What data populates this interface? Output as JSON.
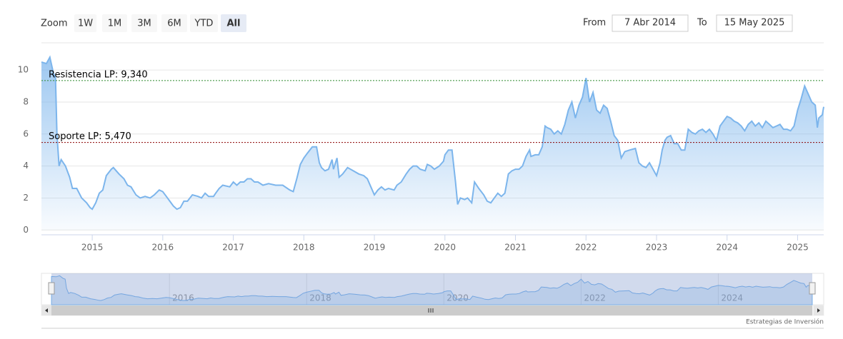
{
  "zoom_label": "Zoom",
  "zoom_buttons": [
    "1W",
    "1M",
    "3M",
    "6M",
    "YTD",
    "All"
  ],
  "selected_zoom_index": 5,
  "from_label": "From",
  "from_date": "7 Abr 2014",
  "to_label": "To",
  "to_date": "15 May 2025",
  "credits": "Estrategias de Inversión",
  "chart_data": {
    "type": "area",
    "color": "#7cb5ec",
    "x": [
      2014.28,
      2014.35,
      2014.4,
      2014.45,
      2014.48,
      2014.5,
      2014.53,
      2014.56,
      2014.62,
      2014.68,
      2014.72,
      2014.78,
      2014.85,
      2014.92,
      2014.97,
      2015.0,
      2015.05,
      2015.1,
      2015.15,
      2015.2,
      2015.27,
      2015.3,
      2015.38,
      2015.45,
      2015.5,
      2015.55,
      2015.62,
      2015.68,
      2015.75,
      2015.82,
      2015.88,
      2015.95,
      2016.0,
      2016.05,
      2016.1,
      2016.15,
      2016.2,
      2016.25,
      2016.3,
      2016.35,
      2016.42,
      2016.5,
      2016.55,
      2016.6,
      2016.65,
      2016.72,
      2016.75,
      2016.8,
      2016.85,
      2016.95,
      2017.0,
      2017.05,
      2017.1,
      2017.15,
      2017.2,
      2017.25,
      2017.3,
      2017.35,
      2017.42,
      2017.5,
      2017.6,
      2017.7,
      2017.8,
      2017.85,
      2017.9,
      2017.95,
      2018.0,
      2018.05,
      2018.12,
      2018.18,
      2018.22,
      2018.25,
      2018.3,
      2018.35,
      2018.4,
      2018.42,
      2018.47,
      2018.5,
      2018.55,
      2018.62,
      2018.7,
      2018.78,
      2018.85,
      2018.9,
      2018.95,
      2019.0,
      2019.05,
      2019.1,
      2019.15,
      2019.2,
      2019.28,
      2019.32,
      2019.38,
      2019.45,
      2019.5,
      2019.55,
      2019.6,
      2019.65,
      2019.72,
      2019.75,
      2019.8,
      2019.85,
      2019.92,
      2019.98,
      2020.0,
      2020.05,
      2020.1,
      2020.15,
      2020.18,
      2020.22,
      2020.28,
      2020.32,
      2020.38,
      2020.42,
      2020.48,
      2020.55,
      2020.6,
      2020.65,
      2020.7,
      2020.75,
      2020.8,
      2020.85,
      2020.9,
      2020.95,
      2021.0,
      2021.05,
      2021.1,
      2021.15,
      2021.2,
      2021.22,
      2021.28,
      2021.33,
      2021.38,
      2021.42,
      2021.45,
      2021.5,
      2021.55,
      2021.6,
      2021.65,
      2021.7,
      2021.75,
      2021.8,
      2021.85,
      2021.9,
      2021.95,
      2022.0,
      2022.05,
      2022.1,
      2022.15,
      2022.2,
      2022.25,
      2022.3,
      2022.35,
      2022.4,
      2022.45,
      2022.5,
      2022.55,
      2022.62,
      2022.7,
      2022.75,
      2022.8,
      2022.85,
      2022.9,
      2022.95,
      2023.0,
      2023.05,
      2023.08,
      2023.12,
      2023.15,
      2023.2,
      2023.25,
      2023.3,
      2023.35,
      2023.4,
      2023.42,
      2023.45,
      2023.5,
      2023.55,
      2023.6,
      2023.65,
      2023.7,
      2023.75,
      2023.8,
      2023.85,
      2023.9,
      2023.95,
      2024.0,
      2024.05,
      2024.1,
      2024.15,
      2024.2,
      2024.25,
      2024.3,
      2024.35,
      2024.4,
      2024.45,
      2024.5,
      2024.55,
      2024.6,
      2024.65,
      2024.7,
      2024.75,
      2024.8,
      2024.85,
      2024.9,
      2024.95,
      2025.0,
      2025.05,
      2025.1,
      2025.15,
      2025.2,
      2025.25,
      2025.28,
      2025.3,
      2025.35,
      2025.37
    ],
    "values": [
      10.5,
      10.4,
      10.8,
      9.8,
      9.5,
      6,
      4.0,
      4.4,
      4.0,
      3.3,
      2.6,
      2.6,
      2.0,
      1.7,
      1.4,
      1.3,
      1.7,
      2.3,
      2.5,
      3.4,
      3.8,
      3.9,
      3.5,
      3.2,
      2.8,
      2.7,
      2.2,
      2.0,
      2.1,
      2.0,
      2.2,
      2.5,
      2.4,
      2.1,
      1.8,
      1.5,
      1.3,
      1.4,
      1.8,
      1.8,
      2.2,
      2.1,
      2.0,
      2.3,
      2.1,
      2.1,
      2.3,
      2.6,
      2.8,
      2.7,
      3.0,
      2.8,
      3.0,
      3.0,
      3.2,
      3.2,
      3.0,
      3.0,
      2.8,
      2.9,
      2.8,
      2.8,
      2.5,
      2.4,
      3.2,
      4.1,
      4.5,
      4.8,
      5.2,
      5.2,
      4.2,
      3.9,
      3.7,
      3.8,
      4.4,
      3.8,
      4.5,
      3.3,
      3.5,
      3.9,
      3.7,
      3.5,
      3.4,
      3.2,
      2.7,
      2.2,
      2.5,
      2.7,
      2.5,
      2.6,
      2.5,
      2.8,
      3.0,
      3.5,
      3.8,
      4.0,
      4.0,
      3.8,
      3.7,
      4.1,
      4.0,
      3.8,
      4.0,
      4.3,
      4.7,
      5.0,
      5.0,
      3.0,
      1.6,
      2.0,
      1.9,
      2.0,
      1.7,
      3.0,
      2.6,
      2.2,
      1.8,
      1.7,
      2.0,
      2.3,
      2.1,
      2.3,
      3.5,
      3.7,
      3.8,
      3.8,
      4.0,
      4.6,
      5.0,
      4.6,
      4.7,
      4.7,
      5.2,
      6.5,
      6.4,
      6.3,
      6.0,
      6.2,
      6.0,
      6.6,
      7.5,
      8.0,
      7.0,
      7.8,
      8.3,
      9.5,
      8.0,
      8.6,
      7.5,
      7.3,
      7.8,
      7.6,
      6.8,
      5.9,
      5.6,
      4.5,
      4.9,
      5.0,
      5.1,
      4.2,
      4.0,
      3.9,
      4.2,
      3.8,
      3.4,
      4.2,
      5.0,
      5.6,
      5.8,
      5.9,
      5.4,
      5.4,
      5.0,
      5.0,
      5.5,
      6.3,
      6.1,
      6.0,
      6.2,
      6.3,
      6.1,
      6.3,
      6.0,
      5.6,
      6.5,
      6.8,
      7.1,
      7.0,
      6.8,
      6.7,
      6.5,
      6.2,
      6.6,
      6.8,
      6.5,
      6.7,
      6.4,
      6.8,
      6.6,
      6.4,
      6.5,
      6.6,
      6.3,
      6.3,
      6.2,
      6.5,
      7.5,
      8.2,
      9.0,
      8.5,
      8.0,
      7.8,
      6.4,
      7.0,
      7.2,
      7.7
    ],
    "xlim": [
      2014.28,
      2025.37
    ],
    "xticks": [
      2015,
      2016,
      2017,
      2018,
      2019,
      2020,
      2021,
      2022,
      2023,
      2024,
      2025
    ],
    "ylim": [
      -0.3,
      11.7
    ],
    "yticks": [
      0,
      2,
      4,
      6,
      8,
      10
    ],
    "grid": true,
    "plot_lines": [
      {
        "value": 9.34,
        "label": "Resistencia LP: 9,340",
        "color": "#2e8b2e"
      },
      {
        "value": 5.47,
        "label": "Soporte LP: 5,470",
        "color": "#8b0000"
      }
    ],
    "navigator_xticks": [
      2016,
      2018,
      2020,
      2022,
      2024
    ]
  }
}
